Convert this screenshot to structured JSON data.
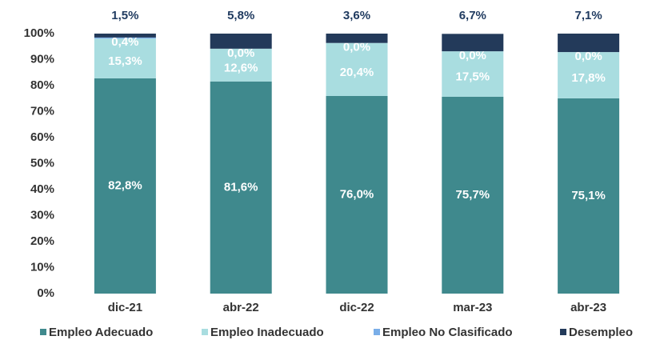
{
  "chart_data": {
    "type": "stacked_bar",
    "categories": [
      "dic-21",
      "abr-22",
      "dic-22",
      "mar-23",
      "abr-23"
    ],
    "series": [
      {
        "name": "Empleo Adecuado",
        "color": "#3f898d",
        "values": [
          82.8,
          81.6,
          76.0,
          75.7,
          75.1
        ],
        "value_labels": [
          "82,8%",
          "81,6%",
          "76,0%",
          "75,7%",
          "75,1%"
        ]
      },
      {
        "name": "Empleo Inadecuado",
        "color": "#a9dde0",
        "values": [
          15.3,
          12.6,
          20.4,
          17.5,
          17.8
        ],
        "value_labels": [
          "15,3%",
          "12,6%",
          "20,4%",
          "17,5%",
          "17,8%"
        ]
      },
      {
        "name": "Empleo No Clasificado",
        "color": "#7aaee8",
        "values": [
          0.4,
          0.0,
          0.0,
          0.0,
          0.0
        ],
        "value_labels": [
          "0,4%",
          "0,0%",
          "0,0%",
          "0,0%",
          "0,0%"
        ]
      },
      {
        "name": "Desempleo",
        "color": "#233a5a",
        "values": [
          1.5,
          5.8,
          3.6,
          6.7,
          7.1
        ],
        "value_labels": [
          "1,5%",
          "5,8%",
          "3,6%",
          "6,7%",
          "7,1%"
        ]
      }
    ],
    "ylim": [
      0,
      100
    ],
    "yticks": [
      {
        "value": 0,
        "label": "0%"
      },
      {
        "value": 10,
        "label": "10%"
      },
      {
        "value": 20,
        "label": "20%"
      },
      {
        "value": 30,
        "label": "30%"
      },
      {
        "value": 40,
        "label": "40%"
      },
      {
        "value": 50,
        "label": "50%"
      },
      {
        "value": 60,
        "label": "60%"
      },
      {
        "value": 70,
        "label": "70%"
      },
      {
        "value": 80,
        "label": "80%"
      },
      {
        "value": 90,
        "label": "90%"
      },
      {
        "value": 100,
        "label": "100%"
      }
    ],
    "grid": false,
    "legend": "bottom"
  }
}
